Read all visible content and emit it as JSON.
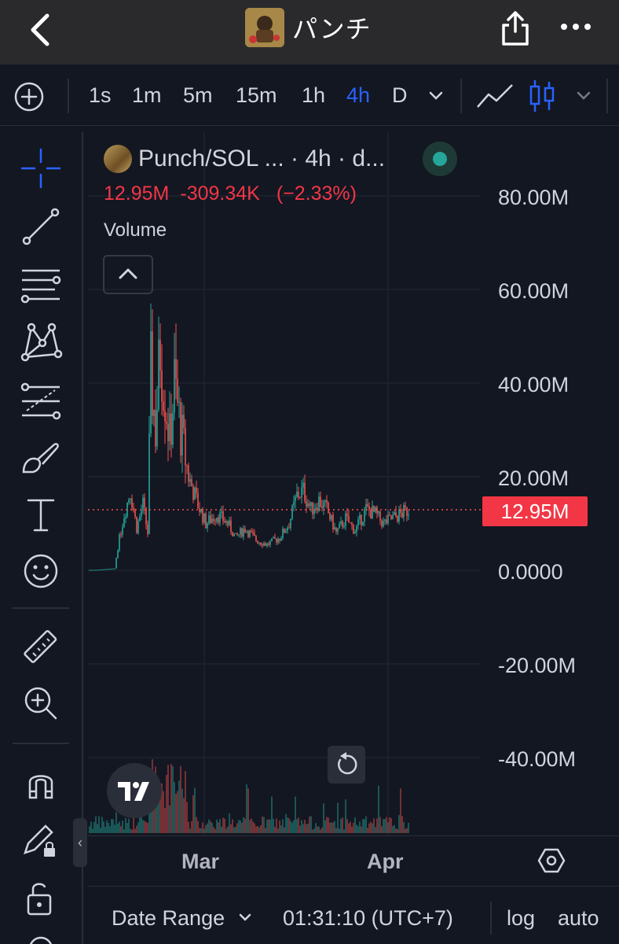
{
  "topbar": {
    "title": "パンチ",
    "back_icon": "chevron-left-icon",
    "share_icon": "share-icon",
    "more_icon": "more-horizontal-icon"
  },
  "toolbar": {
    "timeframes": [
      "1s",
      "1m",
      "5m",
      "15m",
      "1h",
      "4h",
      "D"
    ],
    "active_timeframe": "4h"
  },
  "sidebar": {
    "tools": [
      "crosshair-icon",
      "trend-line-icon",
      "horizontal-lines-icon",
      "pattern-icon",
      "fib-icon",
      "brush-icon",
      "text-icon",
      "emoji-icon",
      "ruler-icon",
      "zoom-in-icon",
      "magnet-icon",
      "lock-drawing-icon",
      "unlock-icon"
    ]
  },
  "legend": {
    "title": "Punch/SOL ... · 4h · d...",
    "price": "12.95M",
    "change": "-309.34K",
    "change_pct": "(−2.33%)",
    "volume_label": "Volume"
  },
  "axis": {
    "y_labels": [
      "80.00M",
      "60.00M",
      "40.00M",
      "20.00M",
      "0.0000",
      "-20.00M",
      "-40.00M"
    ],
    "current_price_badge": "12.95M",
    "x_labels": [
      "Mar",
      "Apr"
    ]
  },
  "bottom": {
    "date_range": "Date Range",
    "clock": "01:31:10 (UTC+7)",
    "log": "log",
    "auto": "auto"
  },
  "colors": {
    "up": "#26a69a",
    "down": "#ef5350",
    "accent": "#2962ff",
    "background": "#131722"
  },
  "chart_data": {
    "type": "candlestick",
    "y_unit": "market cap",
    "ylim": [
      -50000000,
      90000000
    ],
    "approx_close_path": [
      {
        "x": "start",
        "y": 0
      },
      {
        "x": "early Feb",
        "y": 12000000
      },
      {
        "x": "mid Feb",
        "y": 50000000
      },
      {
        "x": "late Feb",
        "y": 12000000
      },
      {
        "x": "early Mar",
        "y": 5000000
      },
      {
        "x": "mid Mar",
        "y": 16000000
      },
      {
        "x": "late Mar",
        "y": 8000000
      },
      {
        "x": "Apr",
        "y": 12950000
      }
    ],
    "last_price": 12950000
  }
}
